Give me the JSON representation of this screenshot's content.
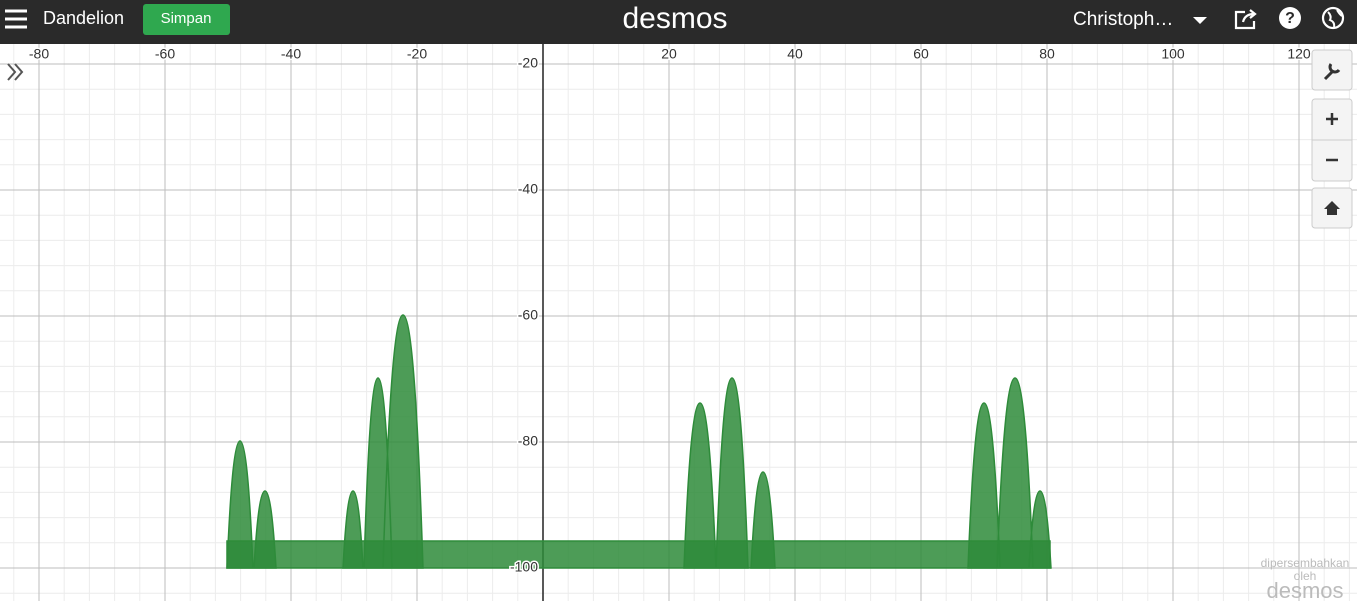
{
  "header": {
    "title": "Dandelion",
    "save_button": "Simpan",
    "logo": "desmos",
    "user": "Christoph…"
  },
  "axes": {
    "xticks": [
      -80,
      -60,
      -40,
      -20,
      20,
      40,
      60,
      80,
      100,
      120
    ],
    "yticks": [
      -20,
      -40,
      -60,
      -80,
      -100
    ]
  },
  "watermark": {
    "line1": "dipersembahkan",
    "line2": "oleh",
    "logo": "desmos"
  }
}
